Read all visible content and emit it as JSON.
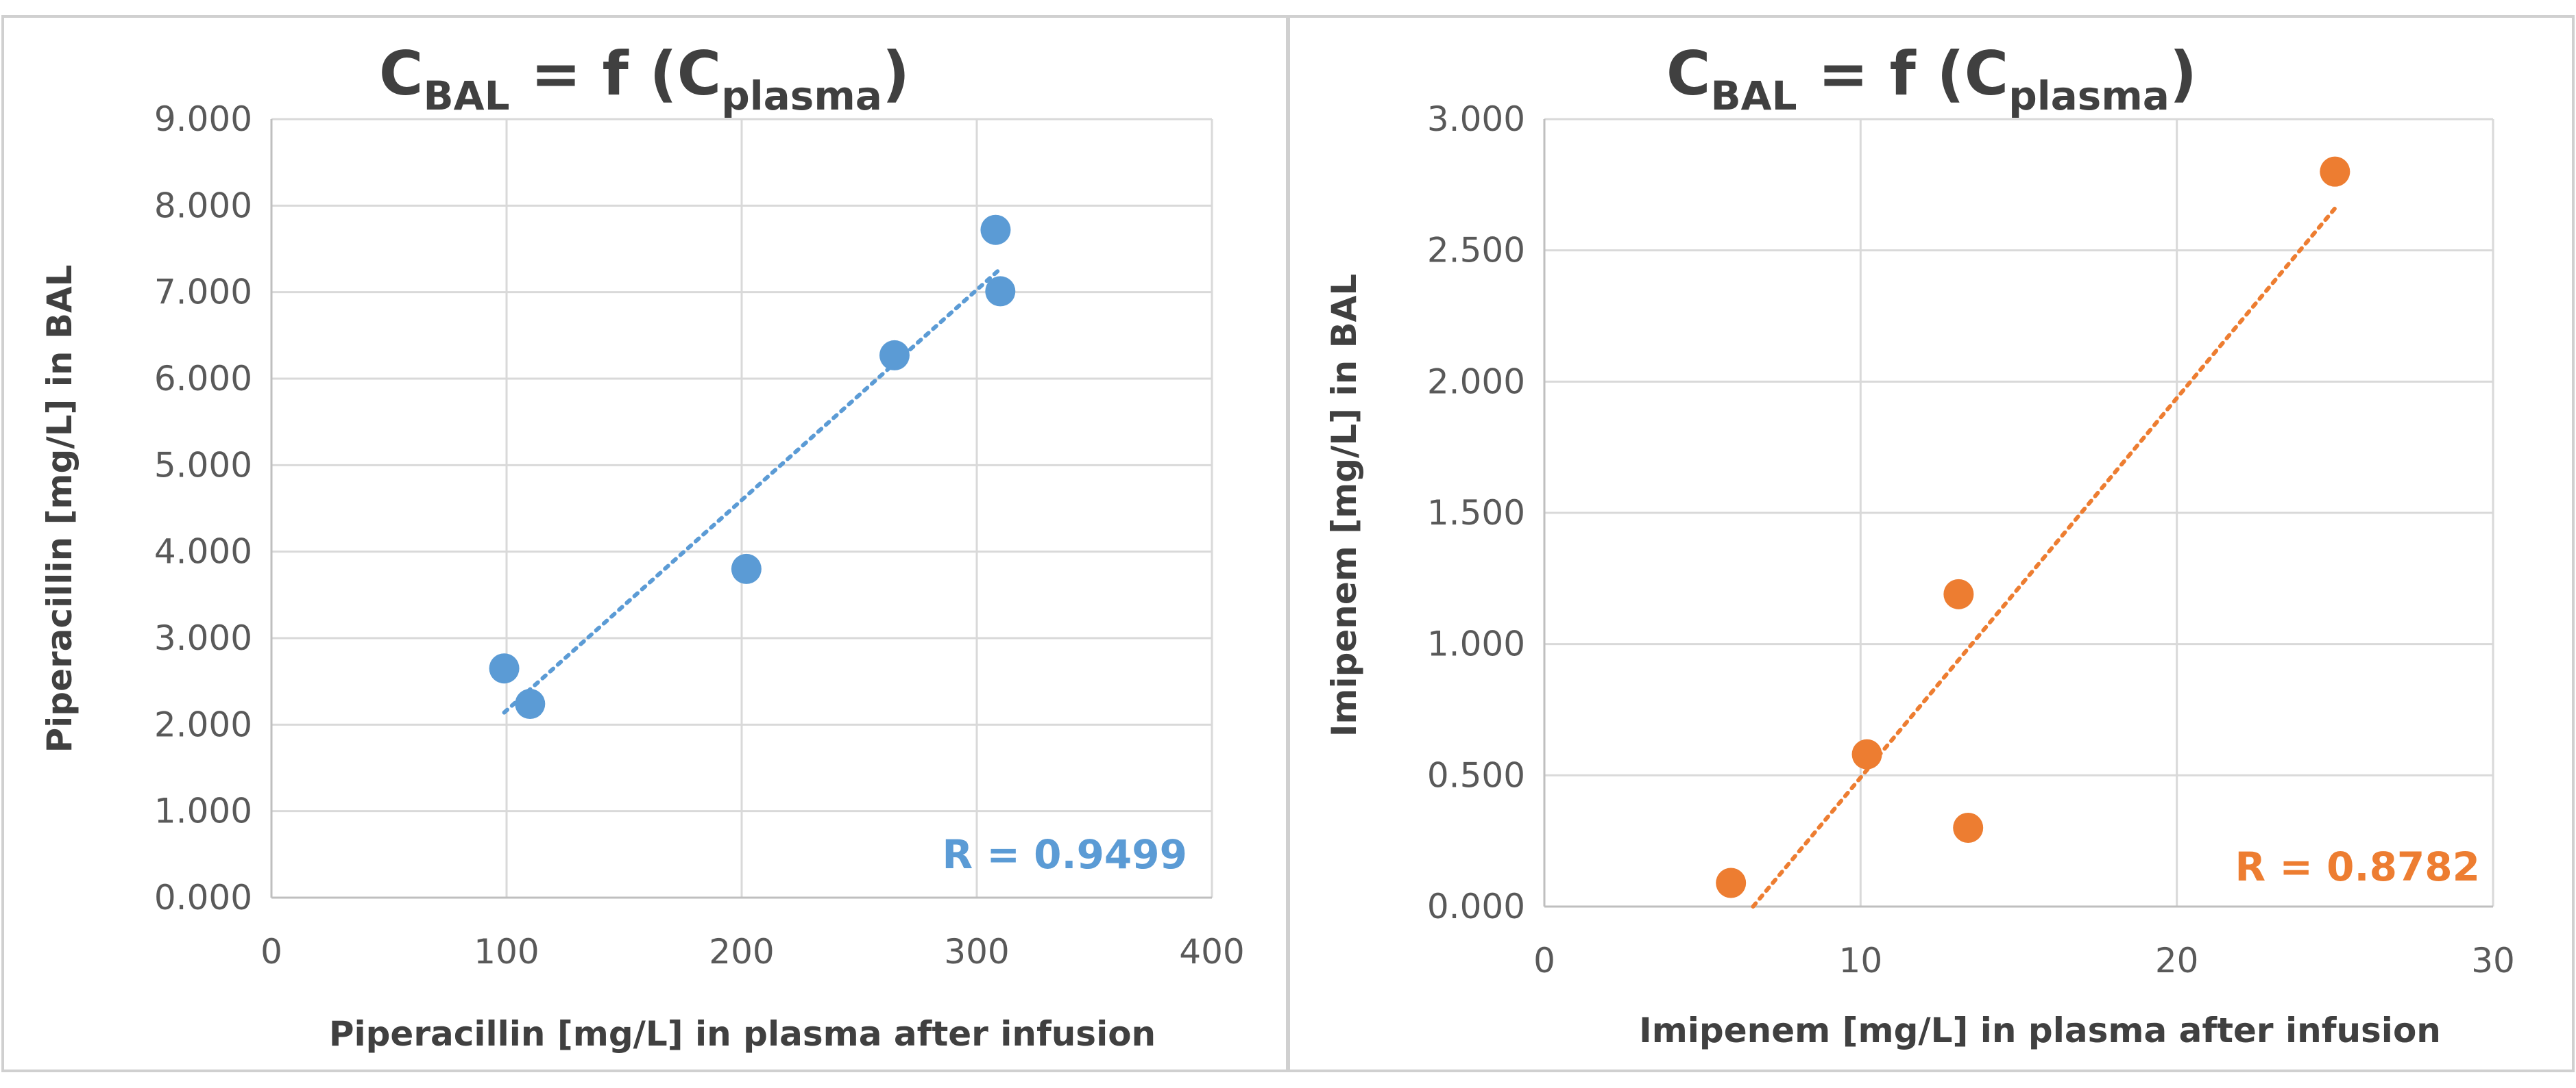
{
  "chart_data": [
    {
      "type": "scatter",
      "title": {
        "main": "C",
        "sub1": "BAL",
        "mid": " = f (C",
        "sub2": "plasma",
        "end": ")"
      },
      "xlabel": "Piperacillin [mg/L] in plasma after infusion",
      "ylabel": "Piperacillin [mg/L] in BAL",
      "xlim": [
        0,
        400
      ],
      "ylim": [
        0,
        9
      ],
      "xticks": [
        0,
        100,
        200,
        300,
        400
      ],
      "xtick_labels": [
        "0",
        "100",
        "200",
        "300",
        "400"
      ],
      "yticks": [
        0,
        1,
        2,
        3,
        4,
        5,
        6,
        7,
        8,
        9
      ],
      "ytick_labels": [
        "0.000",
        "1.000",
        "2.000",
        "3.000",
        "4.000",
        "5.000",
        "6.000",
        "7.000",
        "8.000",
        "9.000"
      ],
      "color": "#5b9bd5",
      "points": [
        {
          "x": 99,
          "y": 2.65
        },
        {
          "x": 110,
          "y": 2.24
        },
        {
          "x": 202,
          "y": 3.8
        },
        {
          "x": 265,
          "y": 6.27
        },
        {
          "x": 308,
          "y": 7.72
        },
        {
          "x": 310,
          "y": 7.01
        }
      ],
      "trendline": {
        "style": "dotted",
        "x": [
          99,
          310
        ],
        "y": [
          2.14,
          7.27
        ]
      },
      "annotation": "R = 0.9499",
      "grid": true
    },
    {
      "type": "scatter",
      "title": {
        "main": "C",
        "sub1": "BAL",
        "mid": " = f (C",
        "sub2": "plasma",
        "end": ")"
      },
      "xlabel": "Imipenem [mg/L] in plasma after infusion",
      "ylabel": "Imipenem [mg/L] in BAL",
      "xlim": [
        0,
        30
      ],
      "ylim": [
        0,
        3
      ],
      "xticks": [
        0,
        10,
        20,
        30
      ],
      "xtick_labels": [
        "0",
        "10",
        "20",
        "30"
      ],
      "yticks": [
        0,
        0.5,
        1,
        1.5,
        2,
        2.5,
        3
      ],
      "ytick_labels": [
        "0.000",
        "0.500",
        "1.000",
        "1.500",
        "2.000",
        "2.500",
        "3.000"
      ],
      "color": "#ed7d31",
      "points": [
        {
          "x": 5.9,
          "y": 0.09
        },
        {
          "x": 10.2,
          "y": 0.58
        },
        {
          "x": 13.1,
          "y": 1.19
        },
        {
          "x": 13.4,
          "y": 0.3
        },
        {
          "x": 25.0,
          "y": 2.8
        }
      ],
      "trendline": {
        "style": "dotted",
        "x": [
          6.6,
          25.0
        ],
        "y": [
          0.0,
          2.66
        ]
      },
      "annotation": "R = 0.8782",
      "grid": true
    }
  ]
}
